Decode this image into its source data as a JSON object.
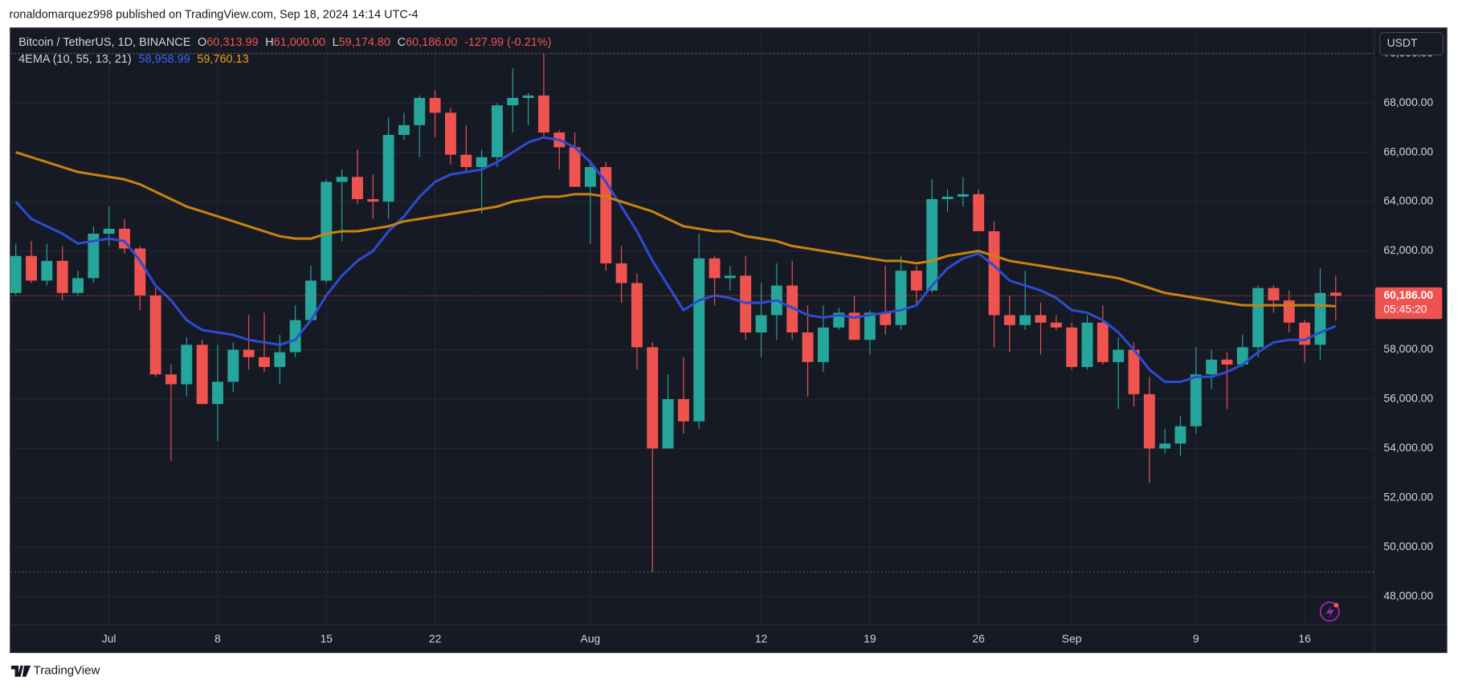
{
  "header": {
    "publisher": "ronaldomarquez998 published on TradingView.com, Sep 18, 2024 14:14 UTC-4"
  },
  "legend": {
    "symbol": "Bitcoin / TetherUS, 1D, BINANCE",
    "o": "O",
    "o_value": "60,313.99",
    "h": "H",
    "h_value": "61,000.00",
    "l": "L",
    "l_value": "59,174.80",
    "c": "C",
    "c_value": "60,186.00",
    "change": "-127.99 (-0.21%)",
    "indicator": "4EMA (10, 55, 13, 21)",
    "ema_fast": "58,958.99",
    "ema_slow": "59,760.13"
  },
  "price_tag": {
    "price": "60,186.00",
    "countdown": "05:45:20"
  },
  "currency_button": "USDT",
  "footer": {
    "brand": "TradingView"
  },
  "chart_data": {
    "type": "candlestick",
    "up_color": "#26a69a",
    "down_color": "#ef5350",
    "x": [
      "Jun 25",
      "Jun 26",
      "Jun 27",
      "Jun 28",
      "Jun 29",
      "Jun 30",
      "Jul 1",
      "Jul 2",
      "Jul 3",
      "Jul 4",
      "Jul 5",
      "Jul 6",
      "Jul 7",
      "Jul 8",
      "Jul 9",
      "Jul 10",
      "Jul 11",
      "Jul 12",
      "Jul 13",
      "Jul 14",
      "Jul 15",
      "Jul 16",
      "Jul 17",
      "Jul 18",
      "Jul 19",
      "Jul 20",
      "Jul 21",
      "Jul 22",
      "Jul 23",
      "Jul 24",
      "Jul 25",
      "Jul 26",
      "Jul 27",
      "Jul 28",
      "Jul 29",
      "Jul 30",
      "Jul 31",
      "Aug 1",
      "Aug 2",
      "Aug 3",
      "Aug 4",
      "Aug 5",
      "Aug 6",
      "Aug 7",
      "Aug 8",
      "Aug 9",
      "Aug 10",
      "Aug 11",
      "Aug 12",
      "Aug 13",
      "Aug 14",
      "Aug 15",
      "Aug 16",
      "Aug 17",
      "Aug 18",
      "Aug 19",
      "Aug 20",
      "Aug 21",
      "Aug 22",
      "Aug 23",
      "Aug 24",
      "Aug 25",
      "Aug 26",
      "Aug 27",
      "Aug 28",
      "Aug 29",
      "Aug 30",
      "Aug 31",
      "Sep 1",
      "Sep 2",
      "Sep 3",
      "Sep 4",
      "Sep 5",
      "Sep 6",
      "Sep 7",
      "Sep 8",
      "Sep 9",
      "Sep 10",
      "Sep 11",
      "Sep 12",
      "Sep 13",
      "Sep 14",
      "Sep 15",
      "Sep 16",
      "Sep 17",
      "Sep 18"
    ],
    "open": [
      60300,
      61800,
      60800,
      61600,
      60300,
      60900,
      62700,
      62900,
      62100,
      60200,
      57000,
      56600,
      58200,
      55800,
      56700,
      58000,
      57700,
      57300,
      57900,
      59200,
      60800,
      64800,
      65000,
      64100,
      64000,
      66700,
      67100,
      68200,
      67600,
      65900,
      65400,
      65800,
      67900,
      68200,
      68300,
      66800,
      66200,
      64600,
      65400,
      61500,
      60700,
      58100,
      54000,
      56000,
      55100,
      61700,
      60900,
      61000,
      58700,
      59400,
      60600,
      58700,
      57500,
      58900,
      59500,
      58400,
      59500,
      59000,
      61200,
      60400,
      64100,
      64200,
      64300,
      62800,
      59400,
      59000,
      59400,
      59100,
      58900,
      57300,
      59100,
      57500,
      58000,
      56200,
      54000,
      54200,
      54900,
      57000,
      57600,
      57400,
      58100,
      60500,
      60000,
      59100,
      58200,
      60313.99
    ],
    "high": [
      62300,
      62400,
      62300,
      62200,
      61200,
      63000,
      63800,
      63300,
      62200,
      60500,
      57400,
      58500,
      58400,
      58200,
      58300,
      59400,
      59500,
      58600,
      59800,
      61400,
      64900,
      65300,
      66100,
      65100,
      67400,
      67600,
      68300,
      68500,
      67800,
      67100,
      66100,
      68000,
      69400,
      68400,
      70000,
      66900,
      66800,
      65600,
      65600,
      62200,
      61100,
      58300,
      57000,
      57700,
      62700,
      61800,
      61400,
      61800,
      60700,
      61500,
      61600,
      59800,
      59800,
      59700,
      60200,
      59600,
      61400,
      61800,
      61400,
      64900,
      64500,
      65000,
      64500,
      63200,
      60200,
      61200,
      59900,
      59400,
      59100,
      59400,
      59800,
      58500,
      58300,
      56900,
      54800,
      55300,
      58100,
      58000,
      57900,
      58600,
      60600,
      60600,
      60400,
      59200,
      61300,
      61000
    ],
    "low": [
      60200,
      60700,
      60600,
      60000,
      60200,
      60700,
      62200,
      61900,
      59600,
      56900,
      53500,
      56100,
      55800,
      54300,
      56300,
      57200,
      57100,
      56600,
      57700,
      59100,
      60700,
      62400,
      63900,
      63300,
      63300,
      66500,
      65800,
      66600,
      65500,
      65200,
      63500,
      65400,
      66800,
      67100,
      66600,
      65300,
      64600,
      62300,
      61200,
      59900,
      57200,
      49000,
      54000,
      54600,
      54800,
      59800,
      60400,
      58400,
      57700,
      58400,
      58400,
      56100,
      57100,
      58800,
      58400,
      57800,
      58600,
      58800,
      59800,
      60300,
      63600,
      63800,
      62800,
      58100,
      57900,
      58800,
      57800,
      58800,
      57200,
      57200,
      57400,
      55600,
      55700,
      52600,
      53800,
      53700,
      54600,
      56400,
      55600,
      57300,
      57700,
      59500,
      58700,
      57500,
      57600,
      59174.8
    ],
    "close": [
      61800,
      60800,
      61600,
      60300,
      60900,
      62700,
      62900,
      62100,
      60200,
      57000,
      56600,
      58200,
      55800,
      56700,
      58000,
      57700,
      57300,
      57900,
      59200,
      60800,
      64800,
      65000,
      64100,
      64000,
      66700,
      67100,
      68200,
      67600,
      65900,
      65400,
      65800,
      67900,
      68200,
      68300,
      66800,
      66200,
      64600,
      65400,
      61500,
      60700,
      58100,
      54000,
      56000,
      55100,
      61700,
      60900,
      61000,
      58700,
      59400,
      60600,
      58700,
      57500,
      58900,
      59500,
      58400,
      59500,
      59000,
      61200,
      60400,
      64100,
      64200,
      64300,
      62800,
      59400,
      59000,
      59400,
      59100,
      58900,
      57300,
      59100,
      57500,
      58000,
      56200,
      54000,
      54200,
      54900,
      57000,
      57600,
      57400,
      58100,
      60500,
      60000,
      59100,
      58200,
      60300,
      60186
    ],
    "series": [
      {
        "color": "#2f4bd0",
        "values": [
          64000,
          63300,
          63000,
          62700,
          62300,
          62400,
          62500,
          62400,
          61600,
          60600,
          60000,
          59200,
          58800,
          58700,
          58600,
          58400,
          58300,
          58200,
          58400,
          59200,
          60200,
          61000,
          61600,
          62000,
          62800,
          63400,
          64200,
          64800,
          65100,
          65200,
          65300,
          65600,
          66000,
          66400,
          66600,
          66500,
          66200,
          65600,
          64800,
          63800,
          62800,
          61600,
          60600,
          59600,
          60000,
          60200,
          60100,
          59900,
          59900,
          60000,
          59700,
          59400,
          59300,
          59400,
          59300,
          59400,
          59500,
          59600,
          59800,
          60600,
          61300,
          61700,
          61900,
          61400,
          60800,
          60600,
          60400,
          60100,
          59600,
          59500,
          59200,
          58700,
          58000,
          57200,
          56700,
          56700,
          56900,
          56900,
          57100,
          57400,
          57900,
          58300,
          58400,
          58400,
          58700,
          58958.99
        ]
      },
      {
        "color": "#c8830f",
        "values": [
          66000,
          65800,
          65600,
          65400,
          65200,
          65100,
          65000,
          64900,
          64700,
          64400,
          64100,
          63800,
          63600,
          63400,
          63200,
          63000,
          62800,
          62600,
          62500,
          62500,
          62700,
          62800,
          62800,
          62900,
          63000,
          63200,
          63300,
          63400,
          63500,
          63600,
          63700,
          63800,
          64000,
          64100,
          64200,
          64200,
          64300,
          64300,
          64200,
          64000,
          63800,
          63600,
          63300,
          63000,
          62900,
          62800,
          62800,
          62600,
          62500,
          62400,
          62200,
          62100,
          62000,
          61900,
          61800,
          61700,
          61600,
          61600,
          61500,
          61600,
          61800,
          61900,
          62000,
          61800,
          61600,
          61500,
          61400,
          61300,
          61200,
          61100,
          61000,
          60900,
          60700,
          60500,
          60300,
          60200,
          60100,
          60000,
          59900,
          59800,
          59800,
          59800,
          59800,
          59800,
          59800,
          59760.13
        ]
      }
    ],
    "ylim": [
      46900,
      71000
    ],
    "yticks": [
      {
        "value": 48000,
        "label": "48,000.00"
      },
      {
        "value": 50000,
        "label": "50,000.00"
      },
      {
        "value": 52000,
        "label": "52,000.00"
      },
      {
        "value": 54000,
        "label": "54,000.00"
      },
      {
        "value": 56000,
        "label": "56,000.00"
      },
      {
        "value": 58000,
        "label": "58,000.00"
      },
      {
        "value": 60000,
        "label": "60,000.00"
      },
      {
        "value": 62000,
        "label": "62,000.00"
      },
      {
        "value": 64000,
        "label": "64,000.00"
      },
      {
        "value": 66000,
        "label": "66,000.00"
      },
      {
        "value": 68000,
        "label": "68,000.00"
      },
      {
        "value": 70000,
        "label": "70,000.00"
      }
    ],
    "xticks": [
      {
        "value": "Jul 1",
        "label": "Jul"
      },
      {
        "value": "Jul 8",
        "label": "8"
      },
      {
        "value": "Jul 15",
        "label": "15"
      },
      {
        "value": "Jul 22",
        "label": "22"
      },
      {
        "value": "Aug 1",
        "label": "Aug"
      },
      {
        "value": "Aug 12",
        "label": "12"
      },
      {
        "value": "Aug 19",
        "label": "19"
      },
      {
        "value": "Aug 26",
        "label": "26"
      },
      {
        "value": "Sep 1",
        "label": "Sep"
      },
      {
        "value": "Sep 9",
        "label": "9"
      },
      {
        "value": "Sep 16",
        "label": "16"
      }
    ],
    "grid": true
  }
}
